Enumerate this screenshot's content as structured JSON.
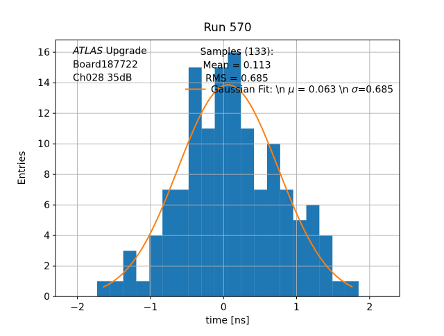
{
  "figure": {
    "kind": "matplotlib-style histogram with gaussian fit"
  },
  "chart_data": {
    "type": "bar",
    "subtype": "histogram-with-line-fit",
    "title": "Run 570",
    "xlabel": "time [ns]",
    "ylabel": "Entries",
    "bin_start": -1.731,
    "bin_width": 0.179,
    "counts": [
      1,
      1,
      3,
      1,
      4,
      7,
      7,
      15,
      11,
      15,
      16,
      11,
      7,
      10,
      7,
      5,
      6,
      4,
      1,
      1
    ],
    "summary": {
      "samples": 133,
      "mean": 0.113,
      "rms": 0.685
    },
    "xlim": [
      -2.3,
      2.41
    ],
    "ylim": [
      0,
      16.8
    ],
    "xticks": [
      -2,
      -1,
      0,
      1,
      2
    ],
    "xtick_labels": [
      "−2",
      "−1",
      "0",
      "1",
      "2"
    ],
    "yticks": [
      0,
      2,
      4,
      6,
      8,
      10,
      12,
      14,
      16
    ],
    "ytick_labels": [
      "0",
      "2",
      "4",
      "6",
      "8",
      "10",
      "12",
      "14",
      "16"
    ],
    "grid": true,
    "grid_color": "#b0b0b0",
    "bar_color": "#1f77b4",
    "fit": {
      "type": "line",
      "color": "#ff7f0e",
      "mu": 0.063,
      "sigma": 0.685,
      "amplitude": 13.86,
      "x_min": -1.642,
      "x_max": 1.759
    },
    "legend_position": "upper-center-right, no frame"
  },
  "annotations": {
    "info": {
      "lines": [
        [
          {
            "t": "ATLAS",
            "i": true
          },
          {
            "t": " Upgrade",
            "i": false
          }
        ],
        [
          {
            "t": "Board187722",
            "i": false
          }
        ],
        [
          {
            "t": "Ch028 35dB",
            "i": false
          }
        ]
      ]
    },
    "stats": {
      "lines": [
        "Samples (133):",
        "Mean = 0.113",
        "RMS = 0.685"
      ]
    },
    "legend": {
      "segments": [
        {
          "t": "Gaussian Fit: \\n ",
          "i": false
        },
        {
          "t": "μ",
          "i": true
        },
        {
          "t": " = 0.063 \\n ",
          "i": false
        },
        {
          "t": "σ",
          "i": true
        },
        {
          "t": "=0.685",
          "i": false
        }
      ]
    }
  }
}
